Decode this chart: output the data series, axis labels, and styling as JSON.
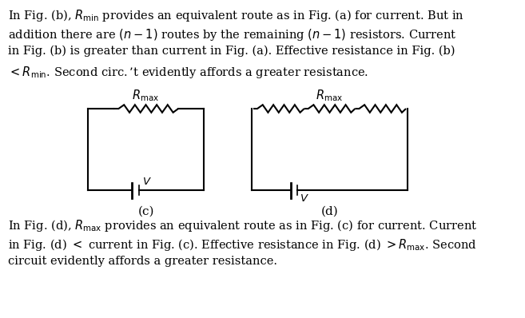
{
  "background_color": "#ffffff",
  "text_top": [
    "In Fig. (b), $R_{\\mathrm{min}}$ provides an equivalent route as in Fig. (a) for current. But in",
    "addition there are $(n-1)$ routes by the remaining $(n-1)$ resistors. Current",
    "in Fig. (b) is greater than current in Fig. (a). Effective resistance in Fig. (b)",
    "$< R_{\\mathrm{min}}$. Second circ. ’t evidently affords a greater resistance."
  ],
  "text_bottom": [
    "In Fig. (d), $R_{\\mathrm{max}}$ provides an equivalent route as in Fig. (c) for current. Current",
    "in Fig. (d) $<$ current in Fig. (c). Effective resistance in Fig. (d) $>R_{\\mathrm{max}}$. Second",
    "circuit evidently affords a greater resistance."
  ],
  "label_c": "(c)",
  "label_d": "(d)",
  "font_size_text": 10.5,
  "font_size_label": 11
}
